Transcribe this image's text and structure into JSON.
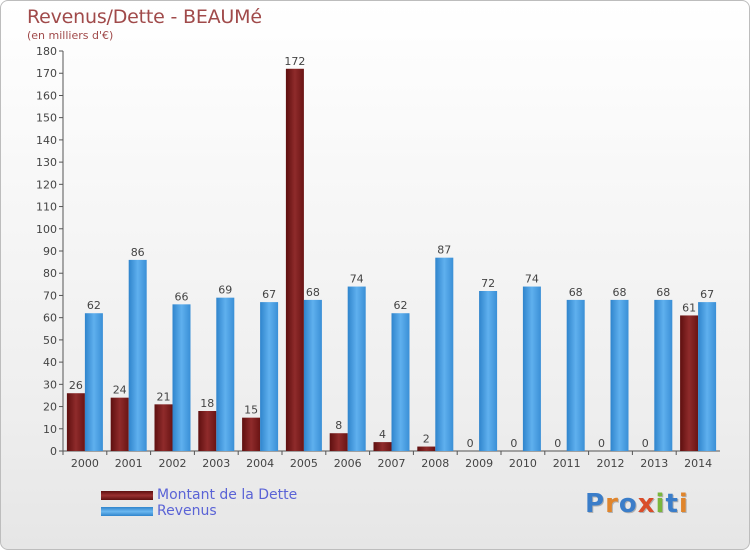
{
  "title": "Revenus/Dette - BEAUMé",
  "subtitle": "(en milliers d'€)",
  "logo": {
    "text": "Proxiti",
    "letters": [
      "P",
      "r",
      "o",
      "x",
      "i",
      "t",
      "i"
    ],
    "colors": [
      "#3a7dc9",
      "#e0852c",
      "#3a7dc9",
      "#d94d2a",
      "#7ab63c",
      "#3a7dc9",
      "#e0852c"
    ]
  },
  "legend": {
    "position": "bottom-left"
  },
  "chart_data": {
    "type": "bar",
    "categories": [
      "2000",
      "2001",
      "2002",
      "2003",
      "2004",
      "2005",
      "2006",
      "2007",
      "2008",
      "2009",
      "2010",
      "2011",
      "2012",
      "2013",
      "2014"
    ],
    "series": [
      {
        "name": "Montant de la Dette",
        "color": "#7a1a1a",
        "values": [
          26,
          24,
          21,
          18,
          15,
          172,
          8,
          4,
          2,
          0,
          0,
          0,
          0,
          0,
          61
        ]
      },
      {
        "name": "Revenus",
        "color": "#3d93d8",
        "values": [
          62,
          86,
          66,
          69,
          67,
          68,
          74,
          62,
          87,
          72,
          74,
          68,
          68,
          68,
          67
        ]
      }
    ],
    "ylim": [
      0,
      180
    ],
    "yticks": [
      0,
      10,
      20,
      30,
      40,
      50,
      60,
      70,
      80,
      90,
      100,
      110,
      120,
      130,
      140,
      150,
      160,
      170,
      180
    ],
    "grid": false
  }
}
